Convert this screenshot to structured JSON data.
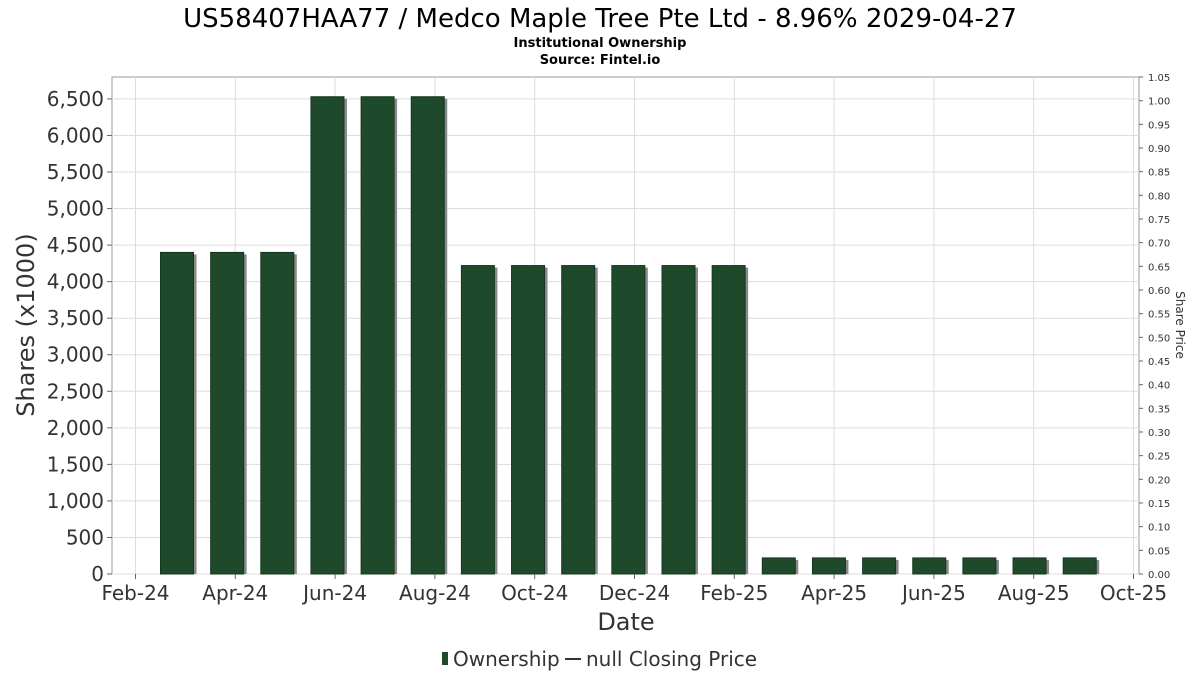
{
  "chart_data": {
    "type": "bar",
    "title": "US58407HAA77 / Medco Maple Tree Pte Ltd - 8.96% 2029-04-27",
    "subtitle": "Institutional Ownership",
    "source": "Source: Fintel.io",
    "xlabel": "Date",
    "ylabel": "Shares (x1000)",
    "y2label": "Share Price",
    "ylim": [
      0,
      6800
    ],
    "y2lim": [
      0,
      1.05
    ],
    "y_ticks": [
      0,
      500,
      1000,
      1500,
      2000,
      2500,
      3000,
      3500,
      4000,
      4500,
      5000,
      5500,
      6000,
      6500
    ],
    "y_tick_labels": [
      "0",
      "500",
      "1,000",
      "1,500",
      "2,000",
      "2,500",
      "3,000",
      "3,500",
      "4,000",
      "4,500",
      "5,000",
      "5,500",
      "6,000",
      "6,500"
    ],
    "y2_tick_labels": [
      "0.00",
      "0.05",
      "0.10",
      "0.15",
      "0.20",
      "0.25",
      "0.30",
      "0.35",
      "0.40",
      "0.45",
      "0.50",
      "0.55",
      "0.60",
      "0.65",
      "0.70",
      "0.75",
      "0.80",
      "0.85",
      "0.90",
      "0.95",
      "1.00",
      "1.05"
    ],
    "x_tick_labels": [
      "Feb-24",
      "Apr-24",
      "Jun-24",
      "Aug-24",
      "Oct-24",
      "Dec-24",
      "Feb-25",
      "Apr-25",
      "Jun-25",
      "Aug-25",
      "Oct-25"
    ],
    "values": [
      4400,
      4400,
      4400,
      6530,
      6530,
      6530,
      4220,
      4220,
      4220,
      4220,
      4220,
      4220,
      220,
      220,
      220,
      220,
      220,
      220,
      220
    ],
    "grid": true,
    "colors": {
      "bar": "#1e4a2b",
      "bar_shadow": "#8a8a8a",
      "grid": "#dddddd",
      "frame": "#999999"
    },
    "legend": {
      "position": "bottom",
      "items": [
        {
          "label": "Ownership",
          "marker": "bar"
        },
        {
          "label": "null Closing Price",
          "marker": "line"
        }
      ]
    }
  }
}
